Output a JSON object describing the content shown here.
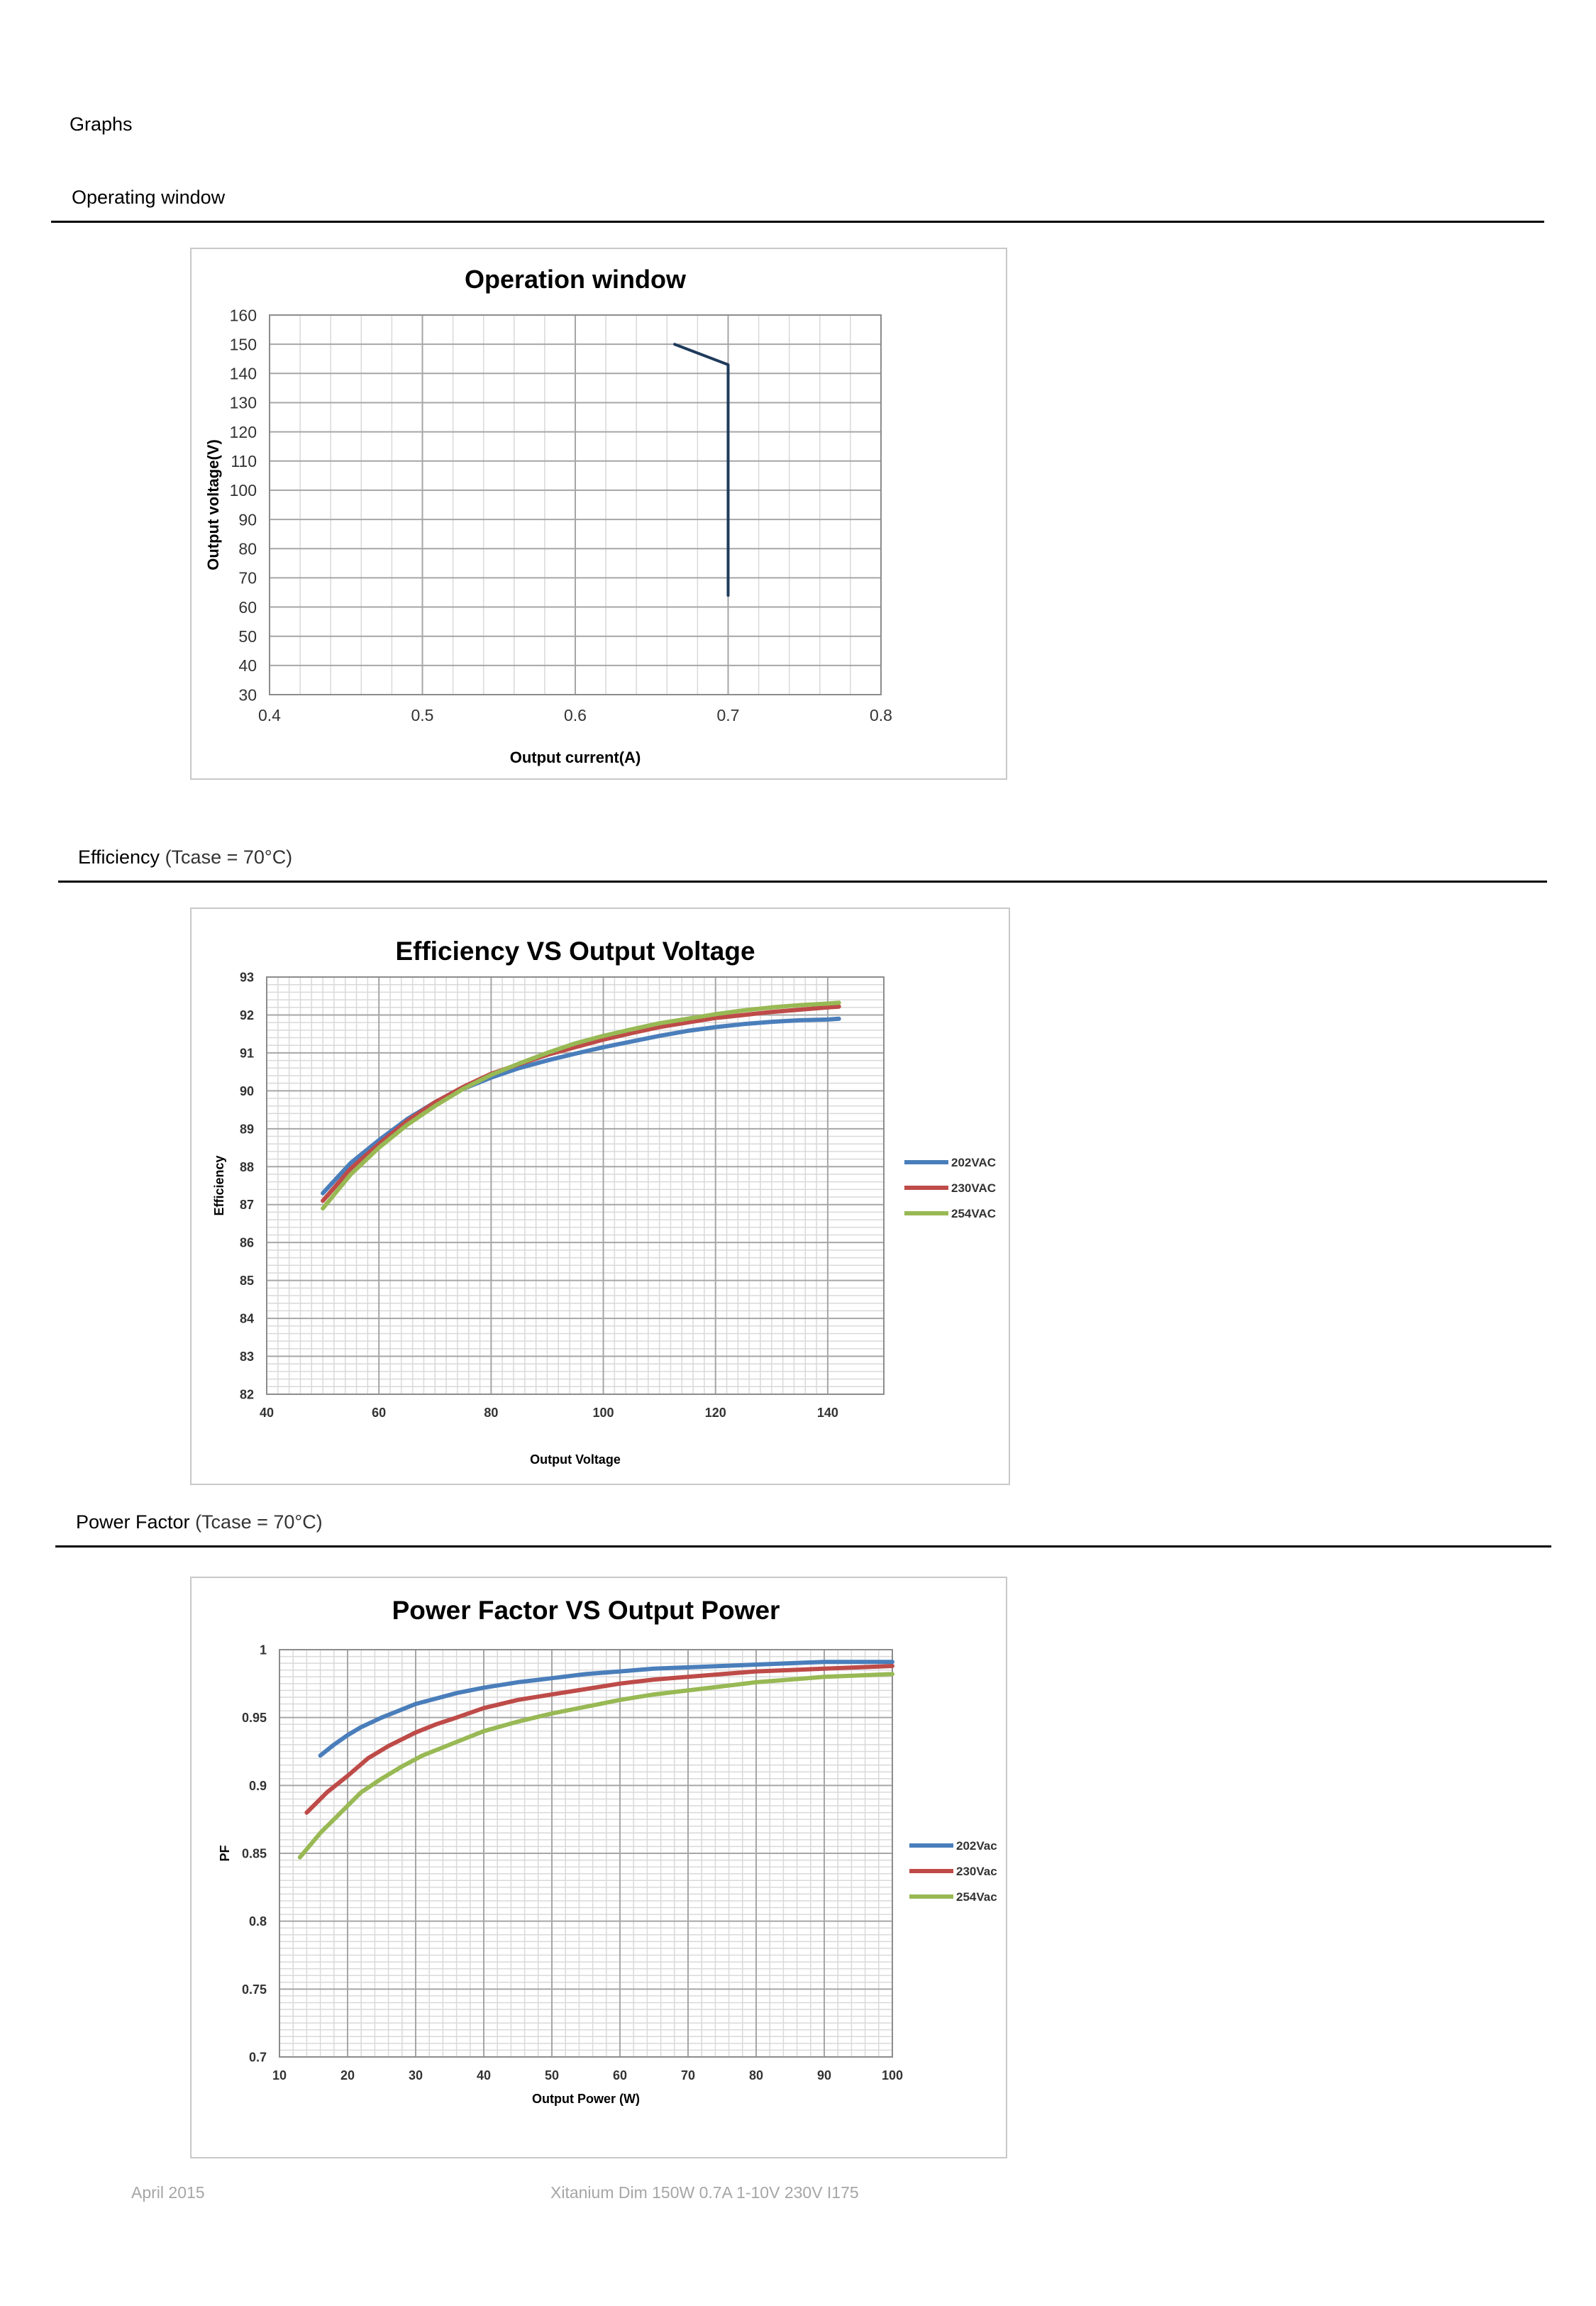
{
  "page": {
    "section_title": "Graphs",
    "headings": {
      "operating": {
        "main": "Operating window",
        "sub": ""
      },
      "efficiency": {
        "main": "Efficiency",
        "sub": " (Tcase = 70°C)"
      },
      "powerfactor": {
        "main": "Power Factor",
        "sub": " (Tcase = 70°C)"
      }
    },
    "footer": {
      "date": "April 2015",
      "product": "Xitanium Dim 150W 0.7A 1-10V 230V I175"
    }
  },
  "chart_data": [
    {
      "id": "operation",
      "type": "line",
      "title": "Operation window",
      "xlabel": "Output current(A)",
      "ylabel": "Output  voltage(V)",
      "xlim": [
        0.4,
        0.8
      ],
      "ylim": [
        30,
        160
      ],
      "xticks": [
        0.4,
        0.5,
        0.6,
        0.7,
        0.8
      ],
      "xtick_labels": [
        "0.4",
        "0.5",
        "0.6",
        "0.7",
        "0.8"
      ],
      "yticks": [
        30,
        40,
        50,
        60,
        70,
        80,
        90,
        100,
        110,
        120,
        130,
        140,
        150,
        160
      ],
      "ytick_labels": [
        "30",
        "40",
        "50",
        "60",
        "70",
        "80",
        "90",
        "100",
        "110",
        "120",
        "130",
        "140",
        "150",
        "160"
      ],
      "grid": true,
      "series": [
        {
          "color": "#1f3b5c",
          "x": [
            0.665,
            0.7,
            0.7
          ],
          "y": [
            150,
            143,
            64
          ]
        }
      ]
    },
    {
      "id": "efficiency",
      "type": "line",
      "title": "Efficiency VS Output Voltage",
      "xlabel": "Output Voltage",
      "ylabel": "Efficiency",
      "xlim": [
        40,
        150
      ],
      "ylim": [
        82,
        93
      ],
      "xticks": [
        40,
        60,
        80,
        100,
        120,
        140
      ],
      "xtick_labels": [
        "40",
        "60",
        "80",
        "100",
        "120",
        "140"
      ],
      "yticks": [
        82,
        83,
        84,
        85,
        86,
        87,
        88,
        89,
        90,
        91,
        92,
        93
      ],
      "ytick_labels": [
        "82",
        "83",
        "84",
        "85",
        "86",
        "87",
        "88",
        "89",
        "90",
        "91",
        "92",
        "93"
      ],
      "grid": true,
      "legend": "right",
      "series": [
        {
          "name": "202VAC",
          "color": "#4a7ebb",
          "x": [
            50,
            55,
            60,
            65,
            70,
            75,
            80,
            85,
            90,
            95,
            100,
            105,
            110,
            115,
            120,
            125,
            130,
            135,
            140,
            142
          ],
          "y": [
            87.3,
            88.1,
            88.7,
            89.25,
            89.7,
            90.05,
            90.35,
            90.6,
            90.8,
            90.98,
            91.15,
            91.3,
            91.45,
            91.58,
            91.68,
            91.76,
            91.82,
            91.86,
            91.88,
            91.9
          ]
        },
        {
          "name": "230VAC",
          "color": "#be4b48",
          "x": [
            50,
            55,
            60,
            65,
            70,
            75,
            80,
            85,
            90,
            95,
            100,
            105,
            110,
            115,
            120,
            125,
            130,
            135,
            140,
            142
          ],
          "y": [
            87.1,
            87.95,
            88.6,
            89.2,
            89.7,
            90.1,
            90.45,
            90.7,
            90.95,
            91.15,
            91.35,
            91.52,
            91.68,
            91.8,
            91.92,
            92.0,
            92.08,
            92.14,
            92.2,
            92.22
          ]
        },
        {
          "name": "254VAC",
          "color": "#98b954",
          "x": [
            50,
            55,
            60,
            65,
            70,
            75,
            80,
            85,
            90,
            95,
            100,
            105,
            110,
            115,
            120,
            125,
            130,
            135,
            140,
            142
          ],
          "y": [
            86.9,
            87.8,
            88.5,
            89.1,
            89.6,
            90.05,
            90.42,
            90.72,
            91.0,
            91.25,
            91.45,
            91.62,
            91.78,
            91.9,
            92.02,
            92.12,
            92.2,
            92.26,
            92.3,
            92.32
          ]
        }
      ]
    },
    {
      "id": "powerfactor",
      "type": "line",
      "title": "Power Factor VS Output Power",
      "xlabel": "Output Power (W)",
      "ylabel": "PF",
      "xlim": [
        10,
        100
      ],
      "ylim": [
        0.7,
        1.0
      ],
      "xticks": [
        10,
        20,
        30,
        40,
        50,
        60,
        70,
        80,
        90,
        100
      ],
      "xtick_labels": [
        "10",
        "20",
        "30",
        "40",
        "50",
        "60",
        "70",
        "80",
        "90",
        "100"
      ],
      "yticks": [
        0.7,
        0.75,
        0.8,
        0.85,
        0.9,
        0.95,
        1.0
      ],
      "ytick_labels": [
        "0.7",
        "0.75",
        "0.8",
        "0.85",
        "0.9",
        "0.95",
        "1"
      ],
      "grid": true,
      "legend": "right",
      "series": [
        {
          "name": "202Vac",
          "color": "#4a7ebb",
          "x": [
            16,
            18,
            20,
            22,
            25,
            28,
            30,
            33,
            36,
            40,
            45,
            50,
            55,
            60,
            65,
            70,
            75,
            80,
            85,
            90,
            95,
            100
          ],
          "y": [
            0.922,
            0.93,
            0.937,
            0.943,
            0.95,
            0.956,
            0.96,
            0.964,
            0.968,
            0.972,
            0.976,
            0.979,
            0.982,
            0.984,
            0.986,
            0.987,
            0.988,
            0.989,
            0.99,
            0.991,
            0.991,
            0.991
          ]
        },
        {
          "name": "230Vac",
          "color": "#be4b48",
          "x": [
            14,
            17,
            20,
            23,
            26,
            30,
            33,
            36,
            40,
            45,
            50,
            55,
            60,
            65,
            70,
            75,
            80,
            85,
            90,
            95,
            100
          ],
          "y": [
            0.88,
            0.895,
            0.907,
            0.92,
            0.929,
            0.939,
            0.945,
            0.95,
            0.957,
            0.963,
            0.967,
            0.971,
            0.975,
            0.978,
            0.98,
            0.982,
            0.984,
            0.985,
            0.986,
            0.987,
            0.988
          ]
        },
        {
          "name": "254Vac",
          "color": "#98b954",
          "x": [
            13,
            16,
            19,
            22,
            25,
            28,
            31,
            35,
            40,
            45,
            50,
            55,
            60,
            65,
            70,
            75,
            80,
            85,
            90,
            95,
            100
          ],
          "y": [
            0.847,
            0.865,
            0.88,
            0.895,
            0.905,
            0.914,
            0.922,
            0.93,
            0.94,
            0.947,
            0.953,
            0.958,
            0.963,
            0.967,
            0.97,
            0.973,
            0.976,
            0.978,
            0.98,
            0.981,
            0.982
          ]
        }
      ]
    }
  ]
}
